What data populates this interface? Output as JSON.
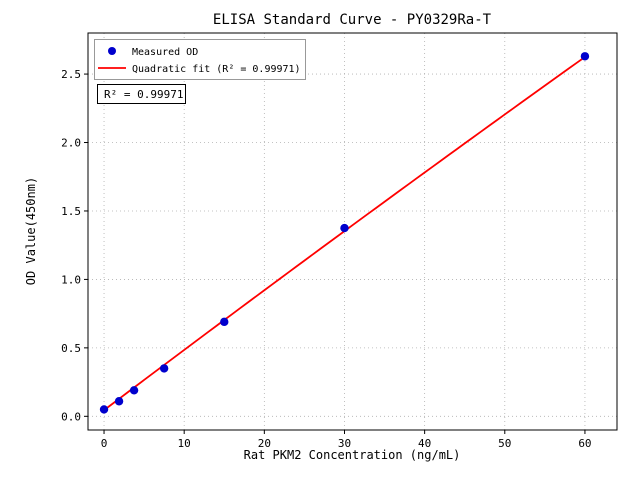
{
  "chart_data": {
    "type": "scatter",
    "title": "ELISA Standard Curve - PY0329Ra-T",
    "xlabel": "Rat PKM2 Concentration (ng/mL)",
    "ylabel": "OD Value(450nm)",
    "annotation": "R² = 0.99971",
    "xlim": [
      -2,
      64
    ],
    "ylim": [
      -0.1,
      2.8
    ],
    "xticks": [
      0,
      10,
      20,
      30,
      40,
      50,
      60
    ],
    "xtick_labels": [
      "0",
      "10",
      "20",
      "30",
      "40",
      "50",
      "60"
    ],
    "yticks": [
      0,
      0.5,
      1,
      1.5,
      2,
      2.5
    ],
    "ytick_labels": [
      "0.0",
      "0.5",
      "1.0",
      "1.5",
      "2.0",
      "2.5"
    ],
    "grid": true,
    "legend_position": "upper left",
    "colors": {
      "scatter": "#0000cd",
      "fit_line": "#ff0000",
      "grid": "#b0b0b0",
      "axes": "#000000"
    },
    "series": [
      {
        "name": "Measured OD",
        "type": "scatter",
        "x": [
          0,
          1.875,
          3.75,
          7.5,
          15,
          30,
          60
        ],
        "y": [
          0.05,
          0.11,
          0.19,
          0.35,
          0.69,
          1.375,
          2.63
        ]
      },
      {
        "name": "Quadratic fit (R² = 0.99971)",
        "type": "quadratic_fit",
        "coefficients": {
          "a": -2e-05,
          "b": 0.0442,
          "c": 0.045
        },
        "x_range": [
          0,
          60
        ]
      }
    ]
  }
}
